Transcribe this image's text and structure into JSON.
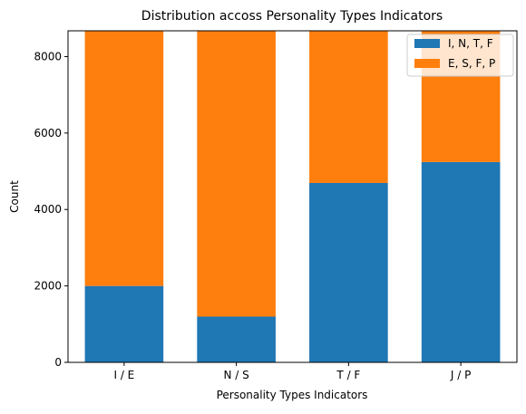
{
  "chart_data": {
    "type": "bar",
    "stacked": true,
    "title": "Distribution accoss Personality Types Indicators",
    "xlabel": "Personality Types Indicators",
    "ylabel": "Count",
    "categories": [
      "I / E",
      "N / S",
      "T / F",
      "J / P"
    ],
    "series": [
      {
        "name": "I, N, T, F",
        "color": "#1f77b4",
        "values": [
          1999,
          1197,
          4694,
          5241
        ]
      },
      {
        "name": "E, S, F, P",
        "color": "#ff7f0e",
        "values": [
          6676,
          7478,
          3981,
          3434
        ]
      }
    ],
    "ylim": [
      0,
      8675
    ],
    "yticks": [
      0,
      2000,
      4000,
      6000,
      8000
    ],
    "grid": false,
    "legend_position": "top-right"
  }
}
